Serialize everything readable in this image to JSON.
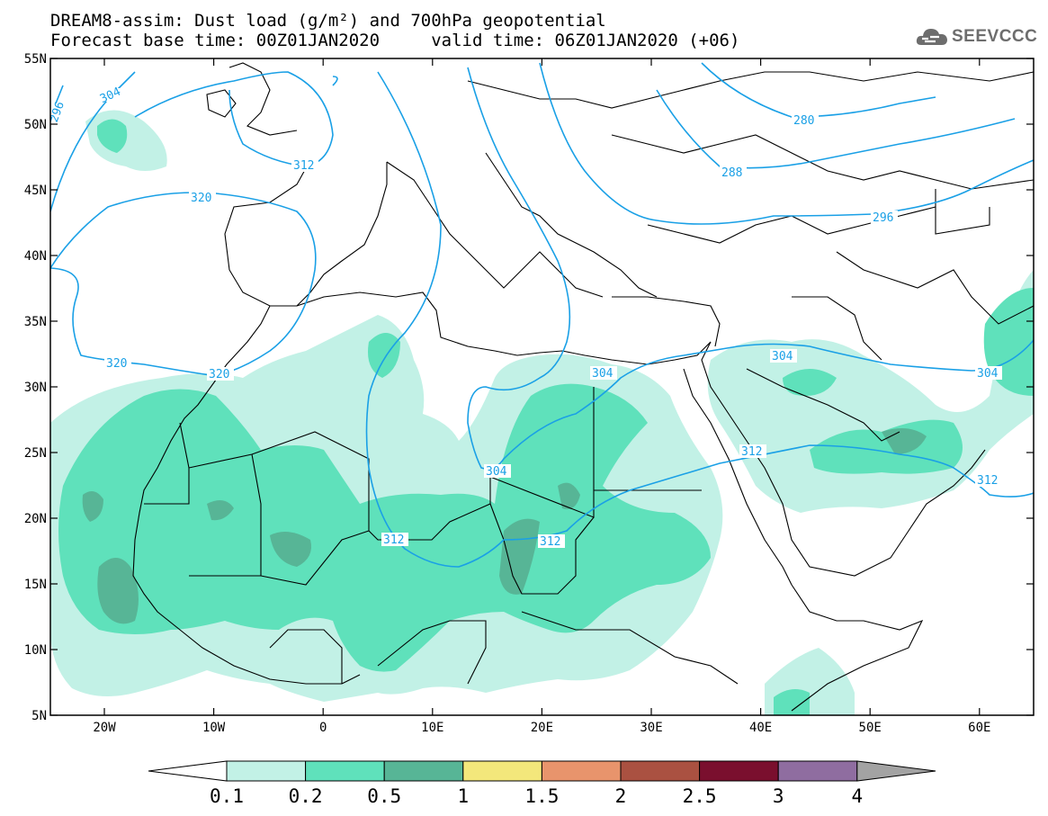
{
  "title": {
    "line1": "DREAM8-assim: Dust load (g/m²) and 700hPa geopotential",
    "line2": "Forecast base time: 00Z01JAN2020     valid time: 06Z01JAN2020 (+06)"
  },
  "logo": {
    "text": "SEEVCCC",
    "icon": "cloud-icon"
  },
  "axes": {
    "lat_labels": [
      "55N",
      "50N",
      "45N",
      "40N",
      "35N",
      "30N",
      "25N",
      "20N",
      "15N",
      "10N",
      "5N"
    ],
    "lon_labels": [
      "20W",
      "10W",
      "0",
      "10E",
      "20E",
      "30E",
      "40E",
      "50E",
      "60E"
    ]
  },
  "contours": [
    {
      "label": "304"
    },
    {
      "label": "296"
    },
    {
      "label": "312"
    },
    {
      "label": "320"
    },
    {
      "label": "320"
    },
    {
      "label": "320"
    },
    {
      "label": "280"
    },
    {
      "label": "288"
    },
    {
      "label": "296"
    },
    {
      "label": "304"
    },
    {
      "label": "304"
    },
    {
      "label": "304"
    },
    {
      "label": "304"
    },
    {
      "label": "312"
    },
    {
      "label": "312"
    },
    {
      "label": "312"
    },
    {
      "label": "312"
    }
  ],
  "colorbar": {
    "labels": [
      "0.1",
      "0.2",
      "0.5",
      "1",
      "1.5",
      "2",
      "2.5",
      "3",
      "4"
    ],
    "colors": [
      "#c2f1e6",
      "#5fe1bb",
      "#57b596",
      "#f3e77b",
      "#e8946c",
      "#aa5141",
      "#7a0f2e",
      "#8f6da0"
    ],
    "under_color": "#ffffff",
    "over_color": "#a3a3a3"
  },
  "colors": {
    "contour": "#1aa0e6",
    "dust_light": "#c2f1e6",
    "dust_mid": "#5fe1bb",
    "dust_dark": "#57b596"
  }
}
